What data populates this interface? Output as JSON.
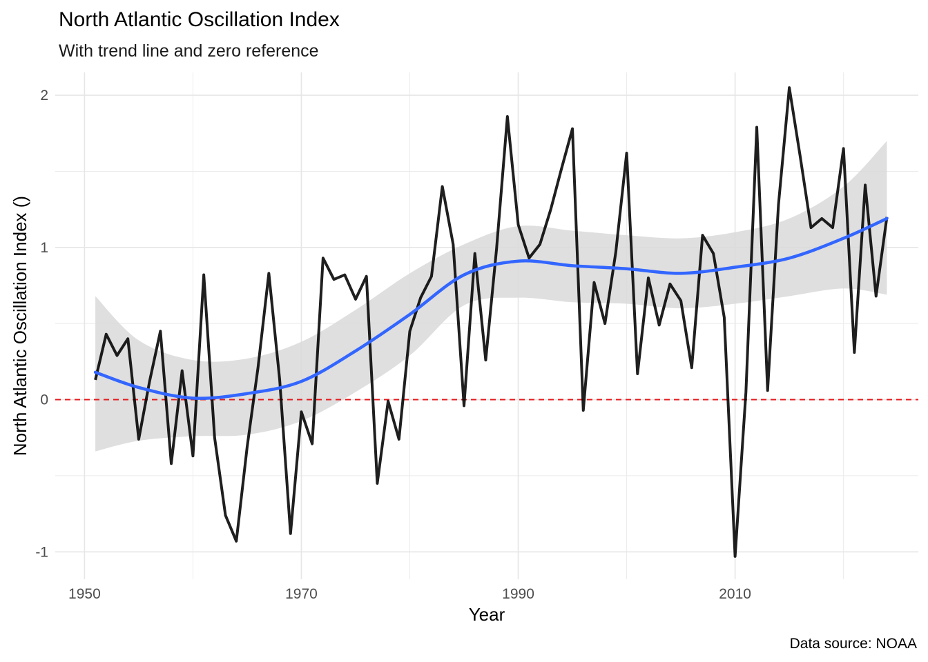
{
  "chart_data": {
    "type": "line",
    "title": "North Atlantic Oscillation Index",
    "subtitle": "With trend line and zero reference",
    "caption": "Data source: NOAA",
    "xlabel": "Year",
    "ylabel": "North Atlantic Oscillation Index ()",
    "xlim": [
      1947.3,
      2026.9
    ],
    "ylim": [
      -1.18,
      2.15
    ],
    "x_ticks": [
      1950,
      1970,
      1990,
      2010
    ],
    "x_tick_labels": [
      "1950",
      "1970",
      "1990",
      "2010"
    ],
    "y_ticks": [
      -1,
      0,
      1,
      2
    ],
    "y_tick_labels": [
      "-1",
      "0",
      "1",
      "2"
    ],
    "grid": true,
    "legend": "none",
    "colors": {
      "series": "#000000",
      "trend": "#3366ff",
      "band": "#d9d9d9",
      "zero_line": "#e41a1c"
    },
    "series": [
      {
        "x": [
          1951,
          1952,
          1953,
          1954,
          1955,
          1956,
          1957,
          1958,
          1959,
          1960,
          1961,
          1962,
          1963,
          1964,
          1965,
          1966,
          1967,
          1968,
          1969,
          1970,
          1971,
          1972,
          1973,
          1974,
          1975,
          1976,
          1977,
          1978,
          1979,
          1980,
          1981,
          1982,
          1983,
          1984,
          1985,
          1986,
          1987,
          1988,
          1989,
          1990,
          1991,
          1992,
          1993,
          1994,
          1995,
          1996,
          1997,
          1998,
          1999,
          2000,
          2001,
          2002,
          2003,
          2004,
          2005,
          2006,
          2007,
          2008,
          2009,
          2010,
          2011,
          2012,
          2013,
          2014,
          2015,
          2016,
          2017,
          2018,
          2019,
          2020,
          2021,
          2022,
          2023,
          2024
        ],
        "values": [
          0.13,
          0.43,
          0.29,
          0.4,
          -0.26,
          0.12,
          0.45,
          -0.42,
          0.19,
          -0.37,
          0.82,
          -0.25,
          -0.76,
          -0.93,
          -0.31,
          0.21,
          0.83,
          0.13,
          -0.88,
          -0.08,
          -0.29,
          0.93,
          0.79,
          0.82,
          0.66,
          0.81,
          -0.55,
          -0.01,
          -0.26,
          0.45,
          0.67,
          0.81,
          1.4,
          1.02,
          -0.04,
          0.96,
          0.26,
          0.99,
          1.86,
          1.15,
          0.93,
          1.02,
          1.25,
          1.52,
          1.78,
          -0.07,
          0.77,
          0.5,
          0.97,
          1.62,
          0.17,
          0.8,
          0.49,
          0.76,
          0.65,
          0.21,
          1.08,
          0.96,
          0.54,
          -1.03,
          0.05,
          1.79,
          0.06,
          1.28,
          2.05,
          1.6,
          1.13,
          1.19,
          1.13,
          1.65,
          0.31,
          1.41,
          0.68,
          1.2
        ]
      }
    ],
    "trend": {
      "x": [
        1951,
        1955,
        1960,
        1965,
        1970,
        1975,
        1980,
        1985,
        1990,
        1995,
        2000,
        2005,
        2010,
        2015,
        2020,
        2024
      ],
      "values": [
        0.18,
        0.08,
        0.01,
        0.04,
        0.12,
        0.32,
        0.56,
        0.82,
        0.91,
        0.88,
        0.86,
        0.83,
        0.87,
        0.93,
        1.06,
        1.19
      ],
      "lower": [
        -0.34,
        -0.27,
        -0.24,
        -0.23,
        -0.14,
        0.05,
        0.29,
        0.62,
        0.67,
        0.64,
        0.63,
        0.6,
        0.63,
        0.68,
        0.73,
        0.69
      ],
      "upper": [
        0.68,
        0.39,
        0.26,
        0.27,
        0.38,
        0.59,
        0.83,
        1.02,
        1.14,
        1.11,
        1.08,
        1.06,
        1.1,
        1.19,
        1.4,
        1.7
      ]
    },
    "reference_line": {
      "y": 0,
      "style": "dashed"
    }
  }
}
